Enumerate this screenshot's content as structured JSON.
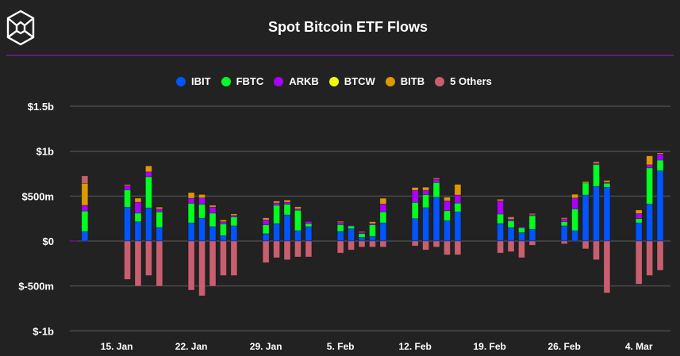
{
  "header": {
    "title": "Spot Bitcoin ETF Flows",
    "logo": "cube-logo"
  },
  "chart_data": {
    "type": "bar",
    "stacked": true,
    "title": "Spot Bitcoin ETF Flows",
    "units": "USD millions",
    "ylim": [
      -1000,
      1500
    ],
    "yticks": [
      1500,
      1000,
      500,
      0,
      -500,
      -1000
    ],
    "ytick_labels": [
      "$1.5b",
      "$1b",
      "$500m",
      "$0",
      "$-500m",
      "$-1b"
    ],
    "xtick_labels": [
      "15. Jan",
      "22. Jan",
      "29. Jan",
      "5. Feb",
      "12. Feb",
      "19. Feb",
      "26. Feb",
      "4. Mar"
    ],
    "xtick_day_offsets": [
      4,
      11,
      18,
      25,
      32,
      39,
      46,
      53
    ],
    "grid": true,
    "legend_position": "top-center",
    "series": [
      {
        "name": "IBIT",
        "color": "#0055ff"
      },
      {
        "name": "FBTC",
        "color": "#00ff22"
      },
      {
        "name": "ARKB",
        "color": "#aa00ff"
      },
      {
        "name": "BTCW",
        "color": "#eeff00"
      },
      {
        "name": "BITB",
        "color": "#dd9900"
      },
      {
        "name": "5 Others",
        "color": "#c85f6f"
      }
    ],
    "dates": [
      "Jan 11",
      "Jan 12",
      "Jan 16",
      "Jan 17",
      "Jan 18",
      "Jan 19",
      "Jan 22",
      "Jan 23",
      "Jan 24",
      "Jan 25",
      "Jan 26",
      "Jan 29",
      "Jan 30",
      "Jan 31",
      "Feb 1",
      "Feb 2",
      "Feb 5",
      "Feb 6",
      "Feb 7",
      "Feb 8",
      "Feb 9",
      "Feb 12",
      "Feb 13",
      "Feb 14",
      "Feb 15",
      "Feb 16",
      "Feb 20",
      "Feb 21",
      "Feb 22",
      "Feb 23",
      "Feb 26",
      "Feb 27",
      "Feb 28",
      "Feb 29",
      "Mar 1",
      "Mar 4",
      "Mar 5",
      "Mar 6"
    ],
    "day_offsets": [
      0,
      1,
      5,
      6,
      7,
      8,
      11,
      12,
      13,
      14,
      15,
      18,
      19,
      20,
      21,
      22,
      25,
      26,
      27,
      28,
      29,
      32,
      33,
      34,
      35,
      36,
      40,
      41,
      42,
      43,
      46,
      47,
      48,
      49,
      50,
      53,
      54,
      55
    ],
    "values": [
      [
        0,
        0,
        8,
        0,
        0,
        0
      ],
      [
        107,
        227,
        64,
        0,
        244,
        84
      ],
      [
        378,
        192,
        47,
        0,
        12,
        -427
      ],
      [
        215,
        96,
        122,
        0,
        44,
        -503
      ],
      [
        369,
        346,
        55,
        0,
        67,
        -384
      ],
      [
        151,
        174,
        32,
        0,
        20,
        -503
      ],
      [
        203,
        218,
        55,
        0,
        64,
        -547
      ],
      [
        256,
        154,
        70,
        0,
        38,
        -610
      ],
      [
        160,
        151,
        67,
        0,
        20,
        -503
      ],
      [
        61,
        131,
        23,
        0,
        20,
        -384
      ],
      [
        169,
        99,
        17,
        0,
        17,
        -384
      ],
      [
        81,
        99,
        55,
        0,
        23,
        -241
      ],
      [
        195,
        203,
        26,
        0,
        20,
        -186
      ],
      [
        291,
        119,
        23,
        0,
        23,
        -209
      ],
      [
        116,
        227,
        15,
        0,
        23,
        -177
      ],
      [
        160,
        35,
        23,
        0,
        0,
        -177
      ],
      [
        108,
        73,
        26,
        0,
        12,
        -134
      ],
      [
        137,
        35,
        3,
        0,
        0,
        -99
      ],
      [
        41,
        41,
        15,
        0,
        9,
        -67
      ],
      [
        52,
        128,
        15,
        0,
        20,
        -67
      ],
      [
        203,
        122,
        87,
        0,
        64,
        -67
      ],
      [
        250,
        180,
        134,
        0,
        32,
        -55
      ],
      [
        372,
        145,
        47,
        0,
        35,
        -99
      ],
      [
        488,
        163,
        38,
        0,
        12,
        -67
      ],
      [
        227,
        110,
        110,
        0,
        41,
        -154
      ],
      [
        326,
        96,
        90,
        0,
        119,
        -154
      ],
      [
        195,
        105,
        148,
        0,
        17,
        -134
      ],
      [
        151,
        73,
        23,
        9,
        12,
        -119
      ],
      [
        93,
        55,
        12,
        0,
        0,
        -186
      ],
      [
        131,
        151,
        12,
        0,
        12,
        -47
      ],
      [
        169,
        47,
        32,
        0,
        12,
        -32
      ],
      [
        116,
        241,
        122,
        0,
        41,
        0
      ],
      [
        512,
        134,
        0,
        9,
        9,
        -87
      ],
      [
        608,
        244,
        17,
        0,
        15,
        -209
      ],
      [
        599,
        44,
        12,
        0,
        20,
        -578
      ],
      [
        203,
        47,
        55,
        0,
        41,
        -480
      ],
      [
        413,
        401,
        35,
        0,
        99,
        -384
      ],
      [
        782,
        119,
        67,
        0,
        12,
        -326
      ]
    ]
  }
}
